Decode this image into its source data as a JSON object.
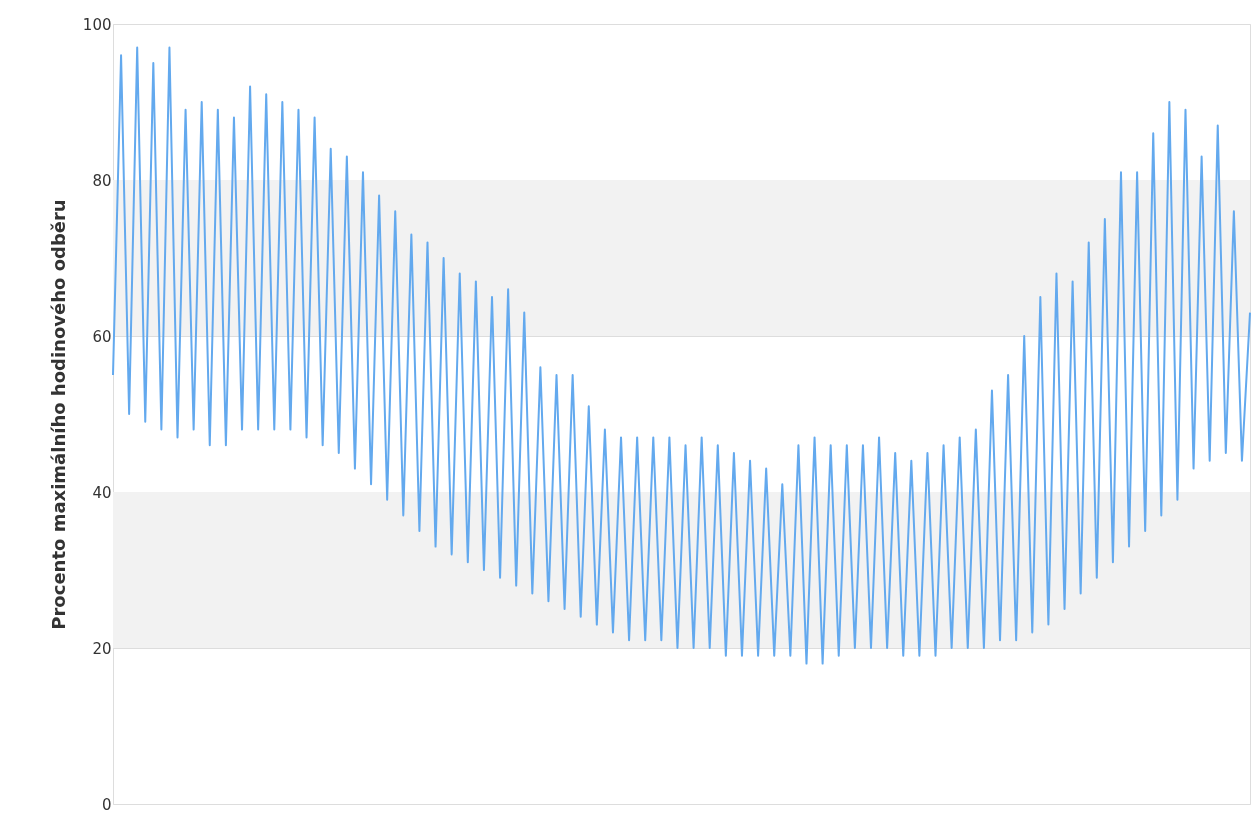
{
  "chart_data": {
    "type": "line",
    "ylabel": "Procento maximálního hodinového odběru",
    "categories": [
      null,
      null,
      null,
      null,
      null,
      null,
      null,
      null,
      null,
      null,
      null,
      null,
      null,
      null,
      null,
      null,
      null,
      null,
      null,
      null,
      null,
      null,
      null,
      null,
      null,
      null,
      null,
      null,
      null,
      null,
      null,
      null,
      null,
      null,
      null,
      null,
      null,
      null,
      null,
      null,
      null,
      null,
      null,
      null,
      null,
      null,
      null,
      null,
      null,
      null,
      null,
      null,
      null,
      null,
      null,
      null,
      null,
      null,
      null,
      null,
      null,
      null,
      null,
      null,
      null,
      null,
      null,
      null,
      null,
      null,
      null,
      null,
      null,
      null,
      null,
      null,
      null,
      null,
      null,
      null,
      null,
      null,
      null,
      null,
      null,
      null,
      null,
      null,
      null,
      null,
      null,
      null,
      null,
      null,
      null,
      null,
      null,
      null,
      null,
      null,
      null,
      null,
      null,
      null,
      null,
      null,
      null,
      null,
      null,
      null,
      null,
      null,
      null,
      null,
      null,
      null,
      null,
      null,
      null,
      null,
      null,
      null,
      null,
      null,
      null,
      null,
      null,
      null,
      null,
      null,
      null,
      null,
      null,
      null,
      null,
      null,
      null,
      null,
      null,
      null,
      null,
      null
    ],
    "series": [
      {
        "color": "#63a9ee",
        "values": [
          55,
          96,
          50,
          97,
          49,
          95,
          48,
          97,
          47,
          89,
          48,
          90,
          46,
          89,
          46,
          88,
          48,
          92,
          48,
          91,
          48,
          90,
          48,
          89,
          47,
          88,
          46,
          84,
          45,
          83,
          43,
          81,
          41,
          78,
          39,
          76,
          37,
          73,
          35,
          72,
          33,
          70,
          32,
          68,
          31,
          67,
          30,
          65,
          29,
          66,
          28,
          63,
          27,
          56,
          26,
          55,
          25,
          55,
          24,
          51,
          23,
          48,
          22,
          47,
          21,
          47,
          21,
          47,
          21,
          47,
          20,
          46,
          20,
          47,
          20,
          46,
          19,
          45,
          19,
          44,
          19,
          43,
          19,
          41,
          19,
          46,
          18,
          47,
          18,
          46,
          19,
          46,
          20,
          46,
          20,
          47,
          20,
          45,
          19,
          44,
          19,
          45,
          19,
          46,
          20,
          47,
          20,
          48,
          20,
          53,
          21,
          55,
          21,
          60,
          22,
          65,
          23,
          68,
          25,
          67,
          27,
          72,
          29,
          75,
          31,
          81,
          33,
          81,
          35,
          86,
          37,
          90,
          39,
          89,
          43,
          83,
          44,
          87,
          45,
          76,
          44,
          63
        ]
      }
    ],
    "ylim": [
      0,
      100
    ],
    "yticks": [
      0,
      20,
      40,
      60,
      80,
      100
    ],
    "grid": "y",
    "tick_labels": "y",
    "line_style": "solid",
    "marker": "none",
    "bands": [
      {
        "axis": "y",
        "from": 20,
        "to": 40,
        "color": "#f2f2f2"
      },
      {
        "axis": "y",
        "from": 60,
        "to": 80,
        "color": "#f2f2f2"
      }
    ]
  }
}
